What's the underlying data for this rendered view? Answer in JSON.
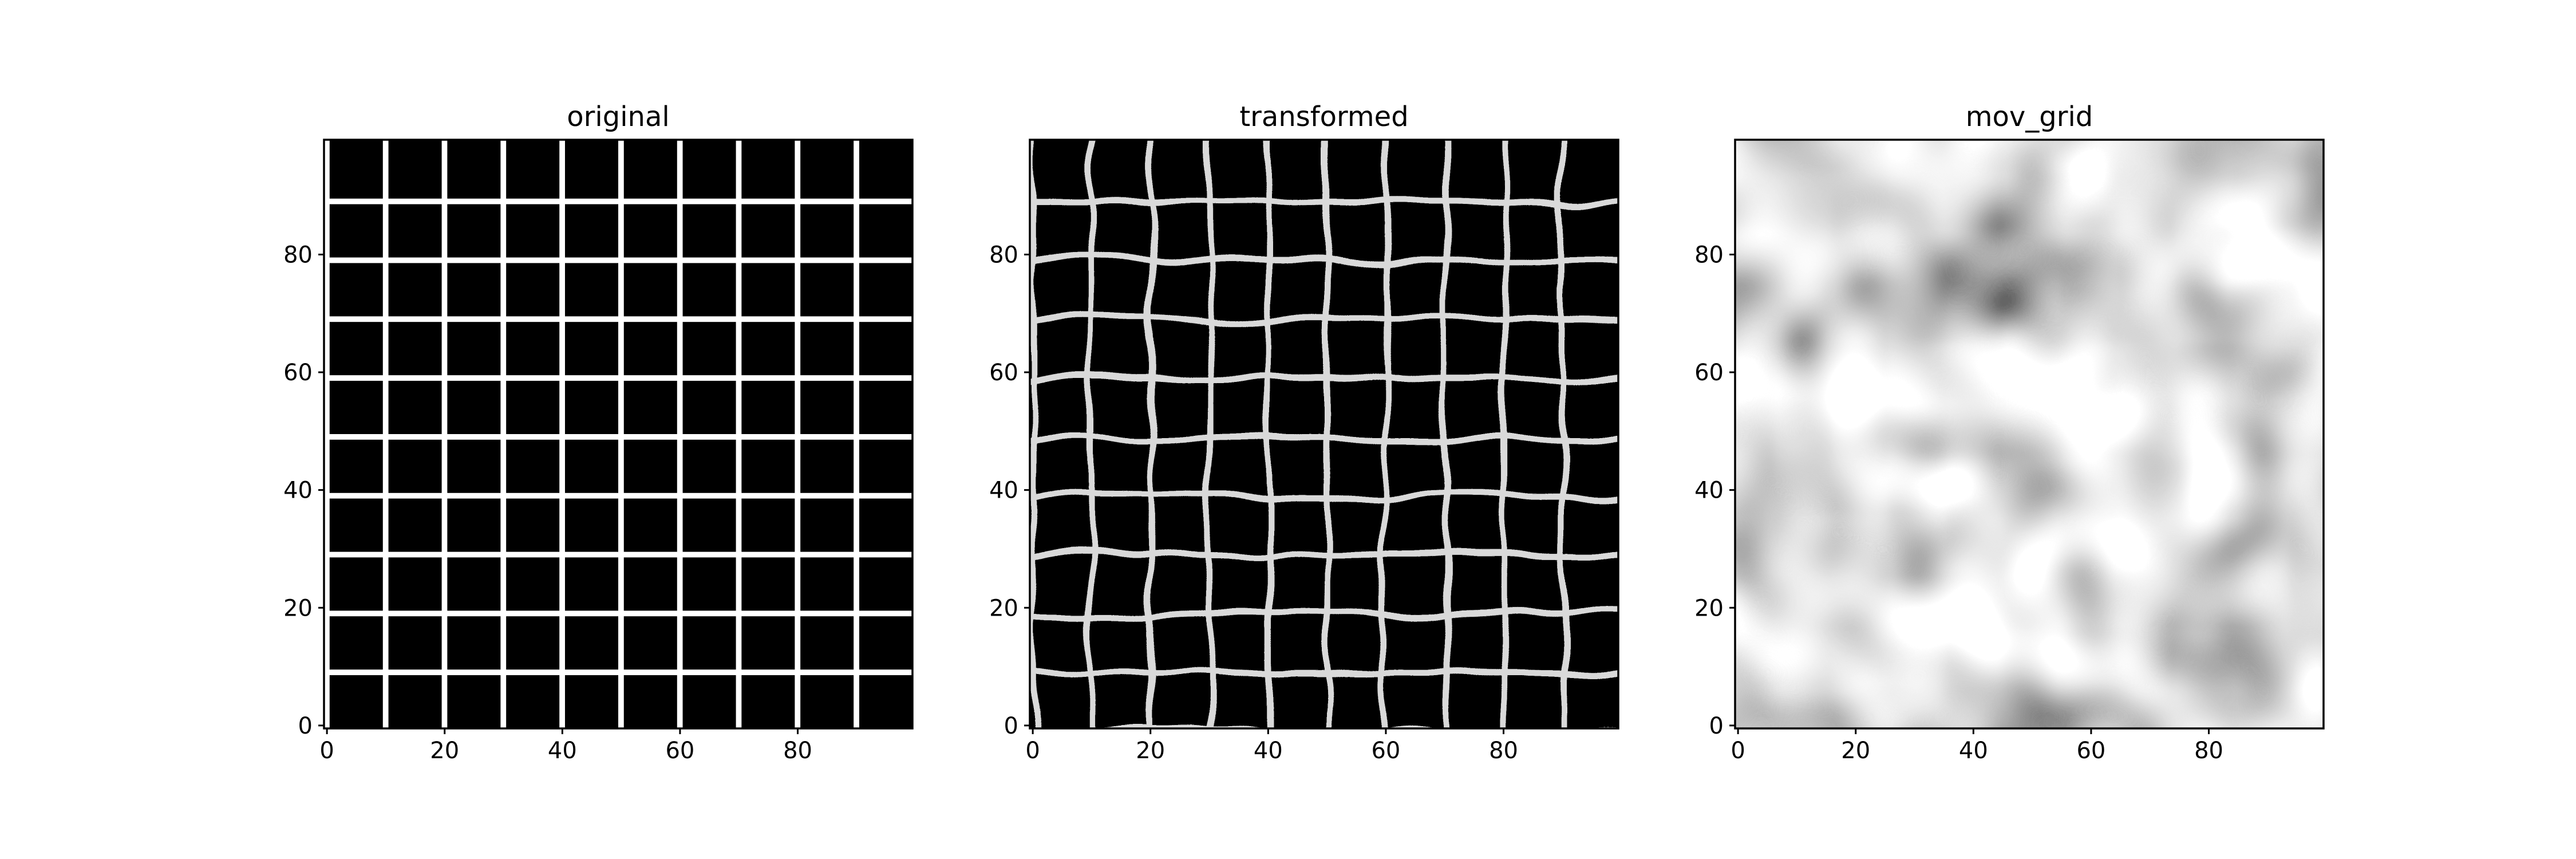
{
  "chart_data": [
    {
      "type": "heatmap",
      "title": "original",
      "colormap": "gray",
      "image_shape": [
        100,
        100
      ],
      "xlim": [
        -0.5,
        99.5
      ],
      "ylim": [
        99.5,
        -0.5
      ],
      "x_ticks": [
        0,
        20,
        40,
        60,
        80
      ],
      "y_ticks": [
        0,
        20,
        40,
        60,
        80
      ],
      "x_tick_labels": [
        "0",
        "20",
        "40",
        "60",
        "80"
      ],
      "y_tick_labels": [
        "0",
        "20",
        "40",
        "60",
        "80"
      ],
      "grid_line_positions": [
        0,
        10,
        20,
        30,
        40,
        50,
        60,
        70,
        80,
        90
      ],
      "grid_line_value": 1,
      "background_value": 0
    },
    {
      "type": "heatmap",
      "title": "transformed",
      "colormap": "gray",
      "image_shape": [
        100,
        100
      ],
      "xlim": [
        -0.5,
        99.5
      ],
      "ylim": [
        99.5,
        -0.5
      ],
      "x_ticks": [
        0,
        20,
        40,
        60,
        80
      ],
      "y_ticks": [
        0,
        20,
        40,
        60,
        80
      ],
      "x_tick_labels": [
        "0",
        "20",
        "40",
        "60",
        "80"
      ],
      "y_tick_labels": [
        "0",
        "20",
        "40",
        "60",
        "80"
      ],
      "grid_line_positions": [
        0,
        10,
        20,
        30,
        40,
        50,
        60,
        70,
        80,
        90
      ],
      "grid_line_value": 0.85,
      "background_value": 0
    },
    {
      "type": "heatmap",
      "title": "mov_grid",
      "colormap": "gray",
      "image_shape": [
        100,
        100
      ],
      "xlim": [
        -0.5,
        99.5
      ],
      "ylim": [
        99.5,
        -0.5
      ],
      "x_ticks": [
        0,
        20,
        40,
        60,
        80
      ],
      "y_ticks": [
        0,
        20,
        40,
        60,
        80
      ],
      "x_tick_labels": [
        "0",
        "20",
        "40",
        "60",
        "80"
      ],
      "y_tick_labels": [
        "0",
        "20",
        "40",
        "60",
        "80"
      ],
      "texture": "smooth random noise"
    }
  ]
}
